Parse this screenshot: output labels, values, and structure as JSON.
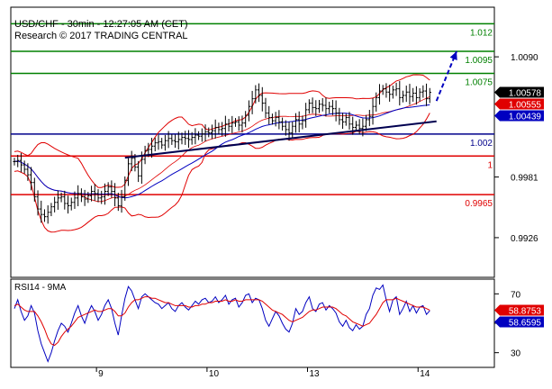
{
  "header": {
    "title": "USD/CHF - 30min - 12:27:05 AM (CET)",
    "subtitle": "Research © 2017 TRADING CENTRAL"
  },
  "chart_data": [
    {
      "type": "candlestick",
      "panel": "price",
      "ylim": [
        0.989,
        1.0135
      ],
      "y_ticks": [
        {
          "value": 1.009,
          "label": "1.0090"
        },
        {
          "value": 0.9981,
          "label": "0.9981"
        },
        {
          "value": 0.9926,
          "label": "0.9926"
        }
      ],
      "x_ticks": [
        {
          "value": 24.5,
          "label": "9"
        },
        {
          "value": 57.5,
          "label": "10"
        },
        {
          "value": 87.5,
          "label": "13"
        },
        {
          "value": 120.5,
          "label": "14"
        }
      ],
      "levels": [
        {
          "label": "1.012",
          "value": 1.012,
          "color": "#008000"
        },
        {
          "label": "1.0095",
          "value": 1.0095,
          "color": "#008000"
        },
        {
          "label": "1.0075",
          "value": 1.0075,
          "color": "#008000"
        },
        {
          "label": "1.002",
          "value": 1.002,
          "color": "#00008B"
        },
        {
          "label": "1",
          "value": 1.0,
          "color": "#E00000"
        },
        {
          "label": "0.9965",
          "value": 0.9965,
          "color": "#E00000"
        }
      ],
      "price_badges": [
        {
          "label": "1.00578",
          "value": 1.00578,
          "color": "#000000"
        },
        {
          "label": "1.00555",
          "value": 1.00555,
          "color": "#E00000"
        },
        {
          "label": "1.00439",
          "value": 1.00439,
          "color": "#0000C0"
        }
      ],
      "close": [
        0.9995,
        0.9996,
        0.9992,
        0.9988,
        0.9983,
        0.9976,
        0.9963,
        0.9952,
        0.9947,
        0.9945,
        0.9949,
        0.9954,
        0.9958,
        0.9962,
        0.9963,
        0.9957,
        0.9955,
        0.9958,
        0.9962,
        0.9966,
        0.9963,
        0.9961,
        0.9964,
        0.9968,
        0.9966,
        0.9962,
        0.9963,
        0.9968,
        0.9972,
        0.9968,
        0.9962,
        0.9955,
        0.9963,
        0.9978,
        0.9993,
        0.9998,
        0.999,
        0.9982,
        0.9997,
        1.0005,
        1.0006,
        1.0009,
        1.0012,
        1.0013,
        1.001,
        1.0014,
        1.0016,
        1.0014,
        1.0013,
        1.0015,
        1.0017,
        1.0016,
        1.0015,
        1.0017,
        1.0019,
        1.0018,
        1.002,
        1.0022,
        1.0021,
        1.0023,
        1.0026,
        1.0024,
        1.0025,
        1.0029,
        1.0027,
        1.003,
        1.0031,
        1.0028,
        1.003,
        1.0037,
        1.0045,
        1.0052,
        1.006,
        1.0055,
        1.0048,
        1.0039,
        1.0035,
        1.0032,
        1.0035,
        1.0031,
        1.0027,
        1.0024,
        1.0021,
        1.0027,
        1.0033,
        1.0029,
        1.0032,
        1.0042,
        1.0048,
        1.0044,
        1.0043,
        1.0047,
        1.0046,
        1.0043,
        1.0045,
        1.0043,
        1.0039,
        1.0033,
        1.0031,
        1.0035,
        1.0029,
        1.0026,
        1.0028,
        1.0025,
        1.0027,
        1.0033,
        1.0036,
        1.0045,
        1.0053,
        1.0059,
        1.0061,
        1.0058,
        1.0056,
        1.006,
        1.0061,
        1.0053,
        1.0055,
        1.0058,
        1.0054,
        1.0057,
        1.0053,
        1.0058,
        1.0059,
        1.0052,
        1.00578
      ],
      "bollinger_bands": true,
      "moving_average": true,
      "trendline": {
        "from": [
          33,
          0.99985
        ],
        "to": [
          126,
          1.00315
        ]
      },
      "projection": {
        "from": [
          126,
          1.005
        ],
        "to": [
          132,
          1.0095
        ],
        "color": "#0000C0"
      }
    },
    {
      "type": "line",
      "panel": "indicator",
      "title": "RSI14 - 9MA",
      "ylim": [
        20,
        80
      ],
      "y_ticks": [
        {
          "value": 70,
          "label": "70"
        },
        {
          "value": 50,
          "label": "50"
        },
        {
          "value": 30,
          "label": "30"
        }
      ],
      "badges": [
        {
          "label": "58.8753",
          "value": 58.8753,
          "color": "#E00000"
        },
        {
          "label": "58.6595",
          "value": 58.6595,
          "color": "#0000C0"
        }
      ],
      "series": [
        {
          "color": "#0000C0",
          "values": [
            60,
            66,
            58,
            52,
            55,
            62,
            57,
            45,
            36,
            30,
            24,
            30,
            38,
            45,
            50,
            48,
            44,
            50,
            57,
            62,
            55,
            50,
            57,
            62,
            58,
            52,
            56,
            62,
            66,
            60,
            50,
            42,
            55,
            67,
            75,
            72,
            66,
            60,
            68,
            70,
            68,
            66,
            64,
            63,
            60,
            62,
            64,
            60,
            58,
            62,
            64,
            61,
            59,
            62,
            65,
            63,
            66,
            67,
            64,
            65,
            68,
            64,
            66,
            69,
            63,
            66,
            67,
            61,
            64,
            69,
            70,
            64,
            67,
            66,
            60,
            52,
            48,
            53,
            58,
            55,
            50,
            46,
            44,
            50,
            60,
            56,
            58,
            64,
            68,
            60,
            58,
            63,
            64,
            59,
            62,
            60,
            57,
            51,
            48,
            52,
            47,
            45,
            49,
            46,
            48,
            56,
            60,
            69,
            74,
            73,
            76,
            66,
            58,
            66,
            68,
            56,
            60,
            65,
            58,
            62,
            57,
            61,
            62,
            56,
            58.66
          ]
        },
        {
          "color": "#E00000",
          "values": [
            62,
            63,
            61,
            59,
            58,
            58,
            58,
            55,
            51,
            46,
            40,
            36,
            35,
            37,
            41,
            44,
            46,
            48,
            51,
            54,
            55,
            56,
            57,
            58,
            59,
            58,
            58,
            59,
            60,
            60,
            58,
            55,
            55,
            57,
            61,
            64,
            66,
            66,
            67,
            68,
            68,
            67,
            67,
            66,
            65,
            64,
            64,
            63,
            62,
            62,
            62,
            62,
            61,
            61,
            62,
            62,
            63,
            63,
            64,
            64,
            65,
            65,
            65,
            66,
            65,
            65,
            66,
            65,
            65,
            66,
            66,
            66,
            66,
            66,
            65,
            63,
            61,
            59,
            58,
            57,
            56,
            54,
            52,
            51,
            52,
            53,
            54,
            56,
            58,
            59,
            59,
            60,
            61,
            61,
            61,
            61,
            60,
            58,
            56,
            55,
            53,
            51,
            50,
            49,
            48,
            49,
            50,
            53,
            56,
            60,
            64,
            66,
            66,
            66,
            67,
            66,
            65,
            64,
            63,
            62,
            61,
            61,
            61,
            60,
            58.88
          ]
        }
      ]
    }
  ]
}
